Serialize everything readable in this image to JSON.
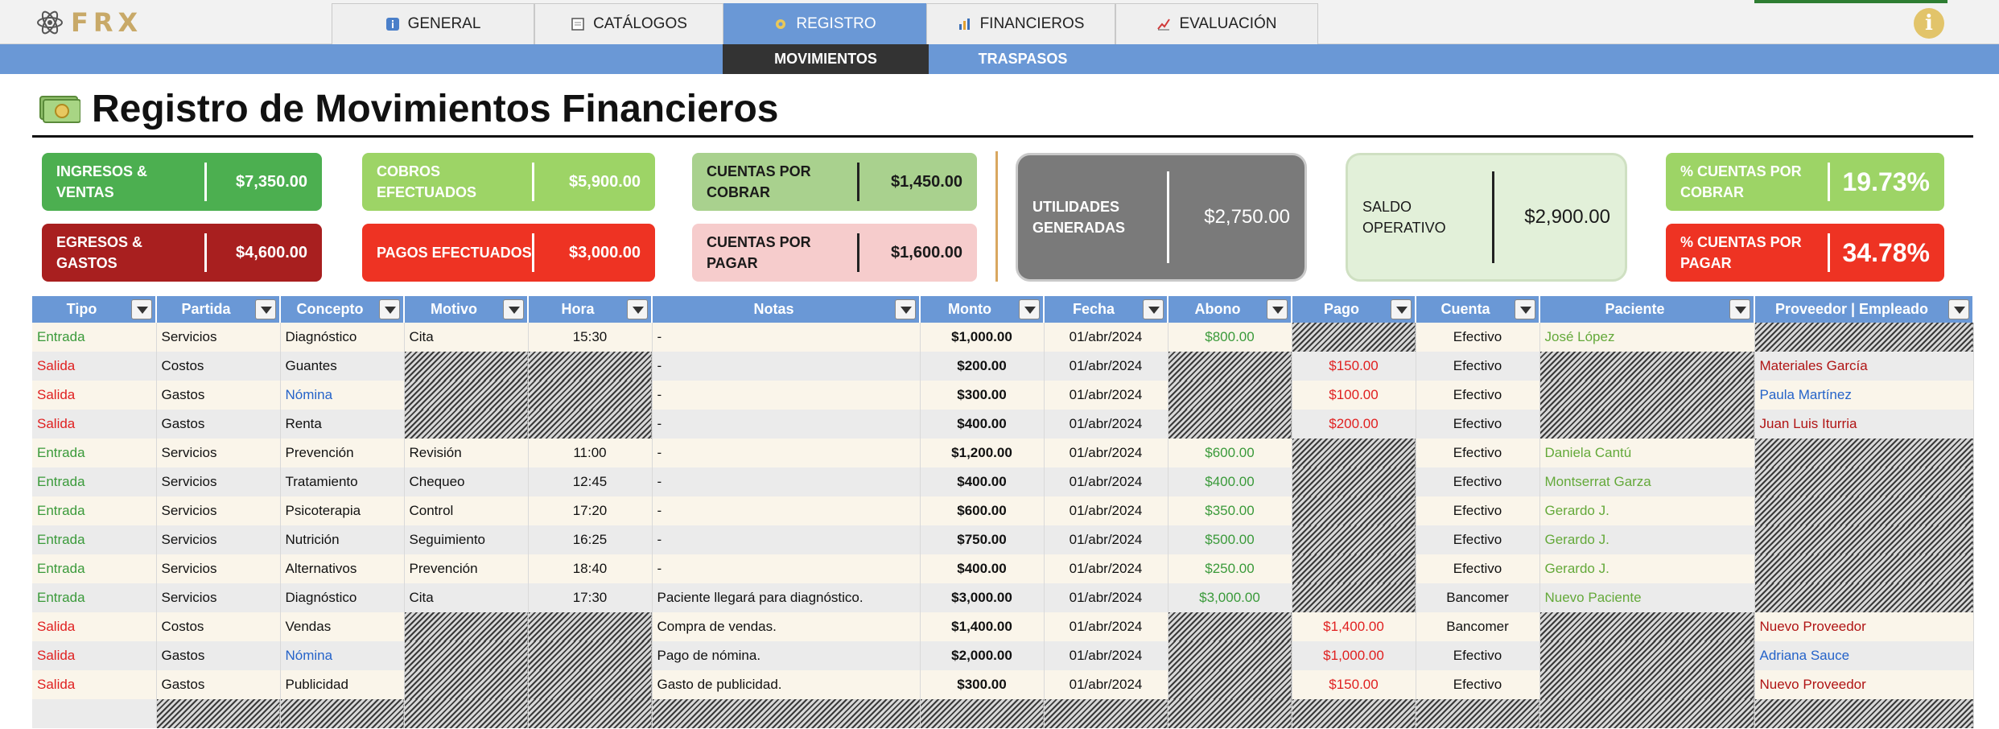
{
  "app": {
    "logo_text": "FRX"
  },
  "colors": {
    "accent_blue": "#6a98d6",
    "entrada": "#3a9a3a",
    "salida": "#e02020",
    "link_blue": "#2563c9"
  },
  "nav": {
    "tabs": [
      {
        "label": "GENERAL",
        "icon": "info-square-icon",
        "active": false
      },
      {
        "label": "CATÁLOGOS",
        "icon": "document-icon",
        "active": false
      },
      {
        "label": "REGISTRO",
        "icon": "gear-icon",
        "active": true
      },
      {
        "label": "FINANCIEROS",
        "icon": "bar-chart-icon",
        "active": false
      },
      {
        "label": "EVALUACIÓN",
        "icon": "line-chart-icon",
        "active": false
      }
    ],
    "subtabs": [
      {
        "label": "MOVIMIENTOS",
        "active": true
      },
      {
        "label": "TRASPASOS",
        "active": false
      }
    ]
  },
  "page": {
    "title": "Registro de Movimientos Financieros"
  },
  "kpis": {
    "ingresos": {
      "label": "INGRESOS & VENTAS",
      "value": "$7,350.00"
    },
    "egresos": {
      "label": "EGRESOS & GASTOS",
      "value": "$4,600.00"
    },
    "cobros": {
      "label": "COBROS EFECTUADOS",
      "value": "$5,900.00"
    },
    "pagos": {
      "label": "PAGOS EFECTUADOS",
      "value": "$3,000.00"
    },
    "cxc": {
      "label": "CUENTAS POR COBRAR",
      "value": "$1,450.00"
    },
    "cxp": {
      "label": "CUENTAS POR PAGAR",
      "value": "$1,600.00"
    },
    "utilidades": {
      "label": "UTILIDADES GENERADAS",
      "value": "$2,750.00"
    },
    "saldo": {
      "label": "SALDO OPERATIVO",
      "value": "$2,900.00"
    },
    "pct_cxc": {
      "label": "% CUENTAS POR COBRAR",
      "value": "19.73%"
    },
    "pct_cxp": {
      "label": "% CUENTAS POR PAGAR",
      "value": "34.78%"
    }
  },
  "table": {
    "columns": [
      "Tipo",
      "Partida",
      "Concepto",
      "Motivo",
      "Hora",
      "Notas",
      "Monto",
      "Fecha",
      "Abono",
      "Pago",
      "Cuenta",
      "Paciente",
      "Proveedor | Empleado"
    ],
    "rows": [
      {
        "tipo": "Entrada",
        "partida": "Servicios",
        "concepto": "Diagnóstico",
        "motivo": "Cita",
        "hora": "15:30",
        "notas": "-",
        "monto": "$1,000.00",
        "fecha": "01/abr/2024",
        "abono": "$800.00",
        "pago": "",
        "cuenta": "Efectivo",
        "paciente": "José López",
        "proveedor": ""
      },
      {
        "tipo": "Salida",
        "partida": "Costos",
        "concepto": "Guantes",
        "motivo": "",
        "hora": "",
        "notas": "-",
        "monto": "$200.00",
        "fecha": "01/abr/2024",
        "abono": "",
        "pago": "$150.00",
        "cuenta": "Efectivo",
        "paciente": "",
        "proveedor": "Materiales García"
      },
      {
        "tipo": "Salida",
        "partida": "Gastos",
        "concepto": "Nómina",
        "motivo": "",
        "hora": "",
        "notas": "-",
        "monto": "$300.00",
        "fecha": "01/abr/2024",
        "abono": "",
        "pago": "$100.00",
        "cuenta": "Efectivo",
        "paciente": "",
        "proveedor": "Paula Martínez"
      },
      {
        "tipo": "Salida",
        "partida": "Gastos",
        "concepto": "Renta",
        "motivo": "",
        "hora": "",
        "notas": "-",
        "monto": "$400.00",
        "fecha": "01/abr/2024",
        "abono": "",
        "pago": "$200.00",
        "cuenta": "Efectivo",
        "paciente": "",
        "proveedor": "Juan Luis Iturria"
      },
      {
        "tipo": "Entrada",
        "partida": "Servicios",
        "concepto": "Prevención",
        "motivo": "Revisión",
        "hora": "11:00",
        "notas": "-",
        "monto": "$1,200.00",
        "fecha": "01/abr/2024",
        "abono": "$600.00",
        "pago": "",
        "cuenta": "Efectivo",
        "paciente": "Daniela Cantú",
        "proveedor": ""
      },
      {
        "tipo": "Entrada",
        "partida": "Servicios",
        "concepto": "Tratamiento",
        "motivo": "Chequeo",
        "hora": "12:45",
        "notas": "-",
        "monto": "$400.00",
        "fecha": "01/abr/2024",
        "abono": "$400.00",
        "pago": "",
        "cuenta": "Efectivo",
        "paciente": "Montserrat Garza",
        "proveedor": ""
      },
      {
        "tipo": "Entrada",
        "partida": "Servicios",
        "concepto": "Psicoterapia",
        "motivo": "Control",
        "hora": "17:20",
        "notas": "-",
        "monto": "$600.00",
        "fecha": "01/abr/2024",
        "abono": "$350.00",
        "pago": "",
        "cuenta": "Efectivo",
        "paciente": "Gerardo J.",
        "proveedor": ""
      },
      {
        "tipo": "Entrada",
        "partida": "Servicios",
        "concepto": "Nutrición",
        "motivo": "Seguimiento",
        "hora": "16:25",
        "notas": "-",
        "monto": "$750.00",
        "fecha": "01/abr/2024",
        "abono": "$500.00",
        "pago": "",
        "cuenta": "Efectivo",
        "paciente": "Gerardo J.",
        "proveedor": ""
      },
      {
        "tipo": "Entrada",
        "partida": "Servicios",
        "concepto": "Alternativos",
        "motivo": "Prevención",
        "hora": "18:40",
        "notas": "-",
        "monto": "$400.00",
        "fecha": "01/abr/2024",
        "abono": "$250.00",
        "pago": "",
        "cuenta": "Efectivo",
        "paciente": "Gerardo J.",
        "proveedor": ""
      },
      {
        "tipo": "Entrada",
        "partida": "Servicios",
        "concepto": "Diagnóstico",
        "motivo": "Cita",
        "hora": "17:30",
        "notas": "Paciente llegará para diagnóstico.",
        "monto": "$3,000.00",
        "fecha": "01/abr/2024",
        "abono": "$3,000.00",
        "pago": "",
        "cuenta": "Bancomer",
        "paciente": "Nuevo Paciente",
        "proveedor": ""
      },
      {
        "tipo": "Salida",
        "partida": "Costos",
        "concepto": "Vendas",
        "motivo": "",
        "hora": "",
        "notas": "Compra de vendas.",
        "monto": "$1,400.00",
        "fecha": "01/abr/2024",
        "abono": "",
        "pago": "$1,400.00",
        "cuenta": "Bancomer",
        "paciente": "",
        "proveedor": "Nuevo Proveedor"
      },
      {
        "tipo": "Salida",
        "partida": "Gastos",
        "concepto": "Nómina",
        "motivo": "",
        "hora": "",
        "notas": "Pago de nómina.",
        "monto": "$2,000.00",
        "fecha": "01/abr/2024",
        "abono": "",
        "pago": "$1,000.00",
        "cuenta": "Efectivo",
        "paciente": "",
        "proveedor": "Adriana Sauce"
      },
      {
        "tipo": "Salida",
        "partida": "Gastos",
        "concepto": "Publicidad",
        "motivo": "",
        "hora": "",
        "notas": "Gasto de publicidad.",
        "monto": "$300.00",
        "fecha": "01/abr/2024",
        "abono": "",
        "pago": "$150.00",
        "cuenta": "Efectivo",
        "paciente": "",
        "proveedor": "Nuevo Proveedor"
      },
      {
        "tipo": "",
        "partida": "",
        "concepto": "",
        "motivo": "",
        "hora": "",
        "notas": "",
        "monto": "",
        "fecha": "",
        "abono": "",
        "pago": "",
        "cuenta": "",
        "paciente": "",
        "proveedor": ""
      }
    ]
  }
}
